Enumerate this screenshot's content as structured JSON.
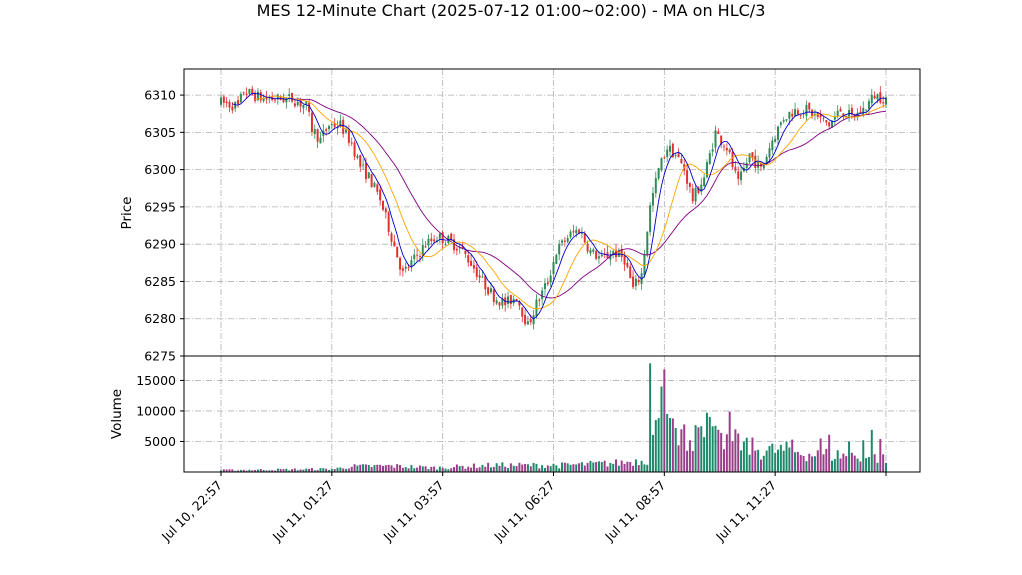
{
  "chart_data": {
    "type": "candlestick",
    "title": "MES 12-Minute Chart (2025-07-12 01:00~02:00) - MA on HLC/3",
    "price_panel": {
      "ylabel": "Price",
      "ylim": [
        6275,
        6313.5
      ],
      "yticks": [
        6275,
        6280,
        6285,
        6290,
        6295,
        6300,
        6305,
        6310
      ],
      "grid": true
    },
    "volume_panel": {
      "ylabel": "Volume",
      "ylim": [
        0,
        19000
      ],
      "yticks": [
        5000,
        10000,
        15000
      ],
      "ytick_labels": [
        "5000",
        "10000",
        "15000"
      ],
      "grid": true
    },
    "x_axis": {
      "n_bars": 235,
      "ticks": [
        {
          "index": 0,
          "label": "Jul 10, 22:57"
        },
        {
          "index": 39,
          "label": "Jul 11, 01:27"
        },
        {
          "index": 78,
          "label": "Jul 11, 03:57"
        },
        {
          "index": 117,
          "label": "Jul 11, 06:27"
        },
        {
          "index": 156,
          "label": "Jul 11, 08:57"
        },
        {
          "index": 195,
          "label": "Jul 11, 11:27"
        },
        {
          "index": 234,
          "label": ""
        }
      ]
    },
    "price_path": [
      [
        0,
        6309
      ],
      [
        6,
        6308.5
      ],
      [
        8,
        6310.5
      ],
      [
        15,
        6309.5
      ],
      [
        25,
        6309.5
      ],
      [
        30,
        6308.5
      ],
      [
        32,
        6305.5
      ],
      [
        35,
        6304
      ],
      [
        38,
        6306
      ],
      [
        42,
        6306
      ],
      [
        46,
        6303.5
      ],
      [
        49,
        6300.5
      ],
      [
        52,
        6299
      ],
      [
        56,
        6296
      ],
      [
        60,
        6291
      ],
      [
        64,
        6286
      ],
      [
        68,
        6288
      ],
      [
        72,
        6290
      ],
      [
        76,
        6291
      ],
      [
        80,
        6290.5
      ],
      [
        84,
        6289.5
      ],
      [
        88,
        6287.5
      ],
      [
        92,
        6285
      ],
      [
        96,
        6283
      ],
      [
        100,
        6282
      ],
      [
        104,
        6283
      ],
      [
        108,
        6279
      ],
      [
        111,
        6282
      ],
      [
        115,
        6285
      ],
      [
        118,
        6289
      ],
      [
        122,
        6291
      ],
      [
        126,
        6292
      ],
      [
        130,
        6289
      ],
      [
        134,
        6288
      ],
      [
        138,
        6289
      ],
      [
        142,
        6288
      ],
      [
        145,
        6284
      ],
      [
        148,
        6286
      ],
      [
        151,
        6295
      ],
      [
        154,
        6300
      ],
      [
        157,
        6303
      ],
      [
        160,
        6302
      ],
      [
        163,
        6300
      ],
      [
        166,
        6296
      ],
      [
        170,
        6299
      ],
      [
        174,
        6305
      ],
      [
        178,
        6303
      ],
      [
        182,
        6298
      ],
      [
        186,
        6302
      ],
      [
        190,
        6300
      ],
      [
        194,
        6304
      ],
      [
        198,
        6307
      ],
      [
        202,
        6308
      ],
      [
        206,
        6308
      ],
      [
        210,
        6307
      ],
      [
        214,
        6306
      ],
      [
        218,
        6308
      ],
      [
        222,
        6307
      ],
      [
        226,
        6308
      ],
      [
        230,
        6310
      ],
      [
        234,
        6309.5
      ]
    ],
    "volume_profile": [
      [
        0,
        300
      ],
      [
        40,
        500
      ],
      [
        45,
        900
      ],
      [
        60,
        1000
      ],
      [
        75,
        700
      ],
      [
        95,
        1100
      ],
      [
        120,
        1100
      ],
      [
        140,
        1500
      ],
      [
        150,
        2000
      ],
      [
        151,
        9000
      ],
      [
        153,
        8000
      ],
      [
        156,
        9000
      ],
      [
        160,
        6000
      ],
      [
        170,
        5500
      ],
      [
        180,
        5000
      ],
      [
        190,
        3500
      ],
      [
        200,
        3500
      ],
      [
        210,
        2800
      ],
      [
        220,
        2800
      ],
      [
        234,
        2200
      ]
    ],
    "volume_spikes": [
      [
        151,
        17800
      ],
      [
        153,
        8500
      ],
      [
        155,
        14000
      ],
      [
        156,
        16800
      ],
      [
        157,
        9500
      ],
      [
        160,
        7200
      ],
      [
        162,
        7000
      ],
      [
        163,
        7800
      ],
      [
        169,
        7500
      ],
      [
        171,
        9700
      ],
      [
        172,
        9000
      ],
      [
        176,
        6400
      ],
      [
        179,
        9900
      ],
      [
        182,
        6300
      ],
      [
        184,
        5000
      ],
      [
        201,
        5300
      ],
      [
        211,
        5500
      ],
      [
        214,
        6100
      ],
      [
        221,
        5000
      ],
      [
        226,
        5200
      ],
      [
        229,
        6900
      ],
      [
        232,
        5400
      ]
    ],
    "ma_colors": {
      "fast": "#0000cc",
      "mid": "#ffa500",
      "slow": "#800080"
    },
    "ma_windows": {
      "fast": 5,
      "mid": 13,
      "slow": 27
    },
    "candle_colors": {
      "up": "#2e8b57",
      "down": "#e03030"
    },
    "volume_colors": {
      "up": "#1a8a6a",
      "down": "#9b3d8a"
    }
  }
}
